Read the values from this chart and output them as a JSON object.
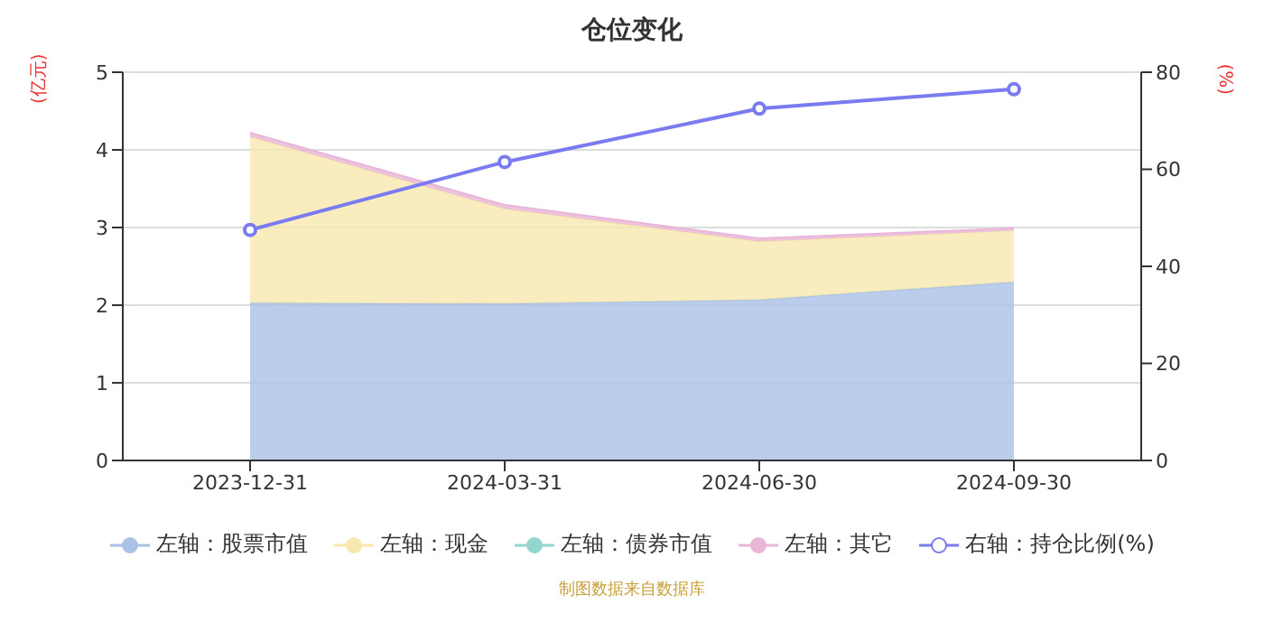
{
  "chart_data": {
    "type": "area",
    "title": "仓位变化",
    "ylabel": "(亿元)",
    "y2label": "(%)",
    "stacked": true,
    "categories": [
      "2023-12-31",
      "2024-03-31",
      "2024-06-30",
      "2024-09-30"
    ],
    "series": [
      {
        "name": "左轴：股票市值",
        "color": "#a9c2e6",
        "values": [
          2.03,
          2.02,
          2.07,
          2.3
        ],
        "marker": "none"
      },
      {
        "name": "左轴：现金",
        "color": "#f7e8b0",
        "values": [
          2.14,
          1.22,
          0.75,
          0.66
        ],
        "marker": "none"
      },
      {
        "name": "左轴：债券市值",
        "color": "#93d5d1",
        "values": [
          null,
          null,
          null,
          null
        ],
        "marker": "none"
      },
      {
        "name": "左轴：其它",
        "color": "#e9b5d8",
        "values": [
          0.05,
          0.05,
          0.04,
          0.03
        ],
        "marker": "none"
      },
      {
        "name": "右轴：持仓比例(%)",
        "type": "line",
        "axis": "y2",
        "color": "#7b7bf0",
        "values": [
          47.5,
          61.5,
          72.5,
          76.5
        ],
        "marker": "circle"
      }
    ],
    "ylim": [
      0,
      5
    ],
    "yticks": [
      0,
      1,
      2,
      3,
      4,
      5
    ],
    "y2lim": [
      0,
      80
    ],
    "y2ticks": [
      0,
      20,
      40,
      60,
      80
    ],
    "grid": "y",
    "legend": "bottom",
    "annotations": [
      "制图数据来自数据库"
    ]
  }
}
